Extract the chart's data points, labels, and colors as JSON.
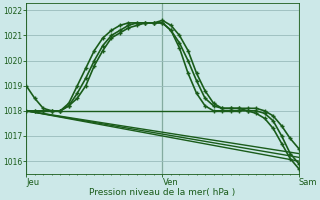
{
  "bg_color": "#cce8e8",
  "grid_color": "#99bbbb",
  "line_color": "#1a5c1a",
  "marker_color": "#1a5c1a",
  "xlabel": "Pression niveau de la mer( hPa )",
  "xlabel_color": "#1a5c1a",
  "tick_color": "#1a5c1a",
  "label_color": "#1a5c1a",
  "ylim": [
    1015.5,
    1022.3
  ],
  "yticks": [
    1016,
    1017,
    1018,
    1019,
    1020,
    1021,
    1022
  ],
  "xtick_labels": [
    "Jeu",
    "Ven",
    "Sam"
  ],
  "xtick_positions": [
    0,
    16,
    32
  ],
  "vline_positions": [
    0,
    16,
    32
  ],
  "series_with_markers": [
    {
      "x": [
        0,
        1,
        2,
        3,
        4,
        5,
        6,
        7,
        8,
        9,
        10,
        11,
        12,
        13,
        14,
        15,
        16,
        17,
        18,
        19,
        20,
        21,
        22,
        23,
        24,
        25,
        26,
        27,
        28,
        29,
        30,
        31,
        32
      ],
      "y": [
        1019.0,
        1018.5,
        1018.1,
        1018.0,
        1018.0,
        1018.2,
        1018.5,
        1019.0,
        1019.8,
        1020.4,
        1020.9,
        1021.1,
        1021.3,
        1021.4,
        1021.5,
        1021.5,
        1021.5,
        1021.2,
        1020.7,
        1020.0,
        1019.2,
        1018.5,
        1018.2,
        1018.1,
        1018.1,
        1018.1,
        1018.1,
        1018.1,
        1018.0,
        1017.8,
        1017.4,
        1016.9,
        1016.5
      ],
      "marker": "+",
      "markersize": 3.5,
      "linewidth": 1.2
    },
    {
      "x": [
        0,
        1,
        2,
        3,
        4,
        5,
        6,
        7,
        8,
        9,
        10,
        11,
        12,
        13,
        14,
        15,
        16,
        17,
        18,
        19,
        20,
        21,
        22,
        23,
        24,
        25,
        26,
        27,
        28,
        29,
        30,
        31,
        32
      ],
      "y": [
        1018.0,
        1018.0,
        1018.0,
        1018.0,
        1018.0,
        1018.2,
        1018.7,
        1019.3,
        1020.0,
        1020.6,
        1021.0,
        1021.2,
        1021.4,
        1021.5,
        1021.5,
        1021.5,
        1021.6,
        1021.4,
        1021.0,
        1020.4,
        1019.5,
        1018.8,
        1018.3,
        1018.1,
        1018.1,
        1018.1,
        1018.0,
        1018.0,
        1017.9,
        1017.6,
        1017.0,
        1016.3,
        1015.9
      ],
      "marker": "+",
      "markersize": 3.5,
      "linewidth": 1.2
    },
    {
      "x": [
        0,
        1,
        2,
        3,
        4,
        5,
        6,
        7,
        8,
        9,
        10,
        11,
        12,
        13,
        14,
        15,
        16,
        17,
        18,
        19,
        20,
        21,
        22,
        23,
        24,
        25,
        26,
        27,
        28,
        29,
        30,
        31,
        32
      ],
      "y": [
        1018.0,
        1018.0,
        1018.0,
        1018.0,
        1018.0,
        1018.3,
        1019.0,
        1019.7,
        1020.4,
        1020.9,
        1021.2,
        1021.4,
        1021.5,
        1021.5,
        1021.5,
        1021.5,
        1021.5,
        1021.2,
        1020.5,
        1019.5,
        1018.7,
        1018.2,
        1018.0,
        1018.0,
        1018.0,
        1018.0,
        1018.0,
        1017.9,
        1017.7,
        1017.3,
        1016.7,
        1016.1,
        1015.7
      ],
      "marker": "+",
      "markersize": 3.5,
      "linewidth": 1.2
    }
  ],
  "series_flat": [
    {
      "x": [
        0,
        25
      ],
      "y": [
        1018.0,
        1018.0
      ],
      "linewidth": 1.0
    },
    {
      "x": [
        0,
        32
      ],
      "y": [
        1018.0,
        1016.0
      ],
      "linewidth": 1.0
    },
    {
      "x": [
        0,
        32
      ],
      "y": [
        1018.0,
        1016.15
      ],
      "linewidth": 1.0
    },
    {
      "x": [
        0,
        32
      ],
      "y": [
        1018.0,
        1016.3
      ],
      "linewidth": 1.0
    }
  ]
}
